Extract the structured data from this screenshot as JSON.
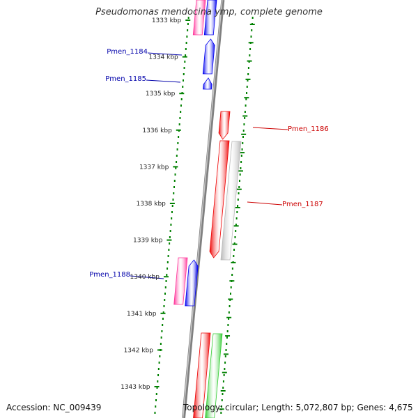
{
  "title": "Pseudomonas mendocina ymp, complete genome",
  "accession_text": "Accession: NC_009439",
  "topology_text": "Topology: circular; Length: 5,072,807 bp; Genes: 4,675",
  "colors": {
    "pink": "#ff3399",
    "blue": "#0000ee",
    "red": "#ee0000",
    "grey": "#b8b8b8",
    "green": "#33cc33",
    "backbone": "#808080",
    "dots": "#008000",
    "label_blue": "#0000aa",
    "label_red": "#cc0000"
  },
  "kbp_labels": [
    "1333 kbp",
    "1334 kbp",
    "1335 kbp",
    "1336 kbp",
    "1337 kbp",
    "1338 kbp",
    "1339 kbp",
    "1340 kbp",
    "1341 kbp",
    "1342 kbp",
    "1343 kbp"
  ],
  "gene_labels": [
    {
      "text": "Pmen_1184",
      "color": "label_blue"
    },
    {
      "text": "Pmen_1185",
      "color": "label_blue"
    },
    {
      "text": "Pmen_1186",
      "color": "label_red"
    },
    {
      "text": "Pmen_1187",
      "color": "label_red"
    },
    {
      "text": "Pmen_1188",
      "color": "label_blue"
    }
  ]
}
